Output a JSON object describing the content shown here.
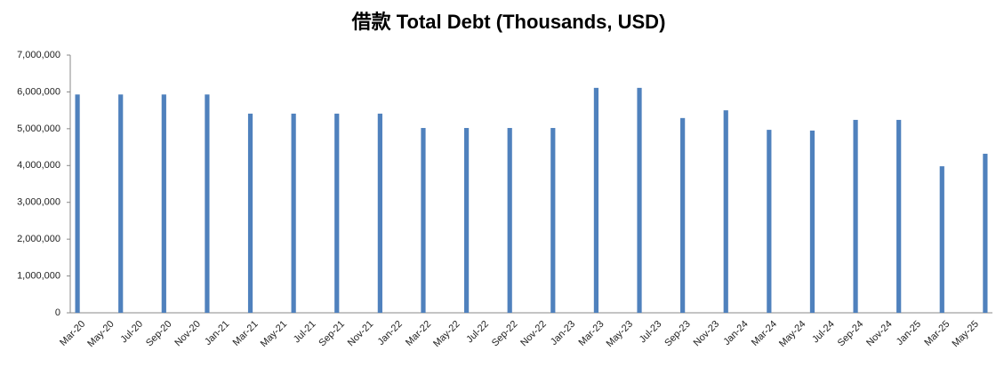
{
  "chart_data": {
    "type": "bar",
    "title": "借款 Total Debt (Thousands, USD)",
    "categories": [
      "Mar-20",
      null,
      "May-20",
      null,
      "Jul-20",
      null,
      "Sep-20",
      null,
      "Nov-20",
      null,
      "Jan-21",
      null,
      "Mar-21",
      null,
      "May-21",
      null,
      "Jul-21",
      null,
      "Sep-21",
      null,
      "Nov-21",
      null,
      "Jan-22",
      null,
      "Mar-22",
      null,
      "May-22",
      null,
      "Jul-22",
      null,
      "Sep-22",
      null,
      "Nov-22",
      null,
      "Jan-23",
      null,
      "Mar-23",
      null,
      "May-23",
      null,
      "Jul-23",
      null,
      "Sep-23",
      null,
      "Nov-23",
      null,
      "Jan-24",
      null,
      "Mar-24",
      null,
      "May-24",
      null,
      "Jul-24",
      null,
      "Sep-24",
      null,
      "Nov-24",
      null,
      "Jan-25",
      null,
      "Mar-25",
      null,
      "May-25",
      null
    ],
    "values": [
      5930000,
      null,
      null,
      5930000,
      null,
      null,
      5930000,
      null,
      null,
      5930000,
      null,
      null,
      5410000,
      null,
      null,
      5410000,
      null,
      null,
      5410000,
      null,
      null,
      5410000,
      null,
      null,
      5020000,
      null,
      null,
      5020000,
      null,
      null,
      5020000,
      null,
      null,
      5020000,
      null,
      null,
      6110000,
      null,
      null,
      6110000,
      null,
      null,
      5290000,
      null,
      null,
      5500000,
      null,
      null,
      4970000,
      null,
      null,
      4950000,
      null,
      null,
      5240000,
      null,
      null,
      5240000,
      null,
      null,
      3980000,
      null,
      null,
      4320000
    ],
    "color": "#4f81bd",
    "ylim": [
      0,
      7000000
    ],
    "yticks": [
      0,
      {
        "value": 1000000,
        "label": "1,000,000"
      },
      {
        "value": 2000000,
        "label": "2,000,000"
      },
      {
        "value": 3000000,
        "label": "3,000,000"
      },
      {
        "value": 4000000,
        "label": "4,000,000"
      },
      {
        "value": 5000000,
        "label": "5,000,000"
      },
      {
        "value": 6000000,
        "label": "6,000,000"
      },
      {
        "value": 7000000,
        "label": "7,000,000"
      }
    ],
    "grid": false
  }
}
